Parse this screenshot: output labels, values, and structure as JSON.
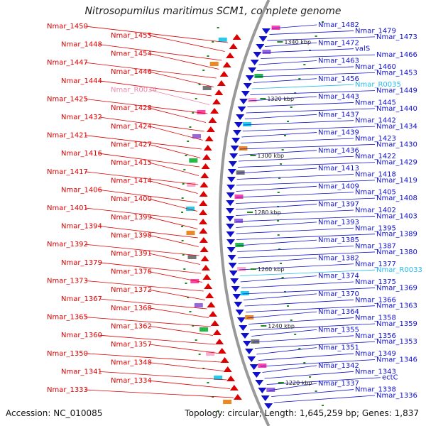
{
  "title": "Nitrosopumilus maritimus SCM1, complete genome",
  "footer": {
    "accession": "Accession: NC_010085",
    "info": "Topology: circular; Length: 1,645,259 bp; Genes: 1,837"
  },
  "colors": {
    "reverse": "#dd0000",
    "forward": "#1010cc",
    "rna": "#ee88aa",
    "trna": "#22bbee",
    "backbone": "#999999",
    "tick": "#228822"
  },
  "kbp_marks": [
    "1340 kbp",
    "1320 kbp",
    "1300 kbp",
    "1280 kbp",
    "1260 kbp",
    "1240 kbp",
    "1220 kbp"
  ],
  "left_labels": [
    {
      "text": "Nmar_1450",
      "kind": "reverse"
    },
    {
      "text": "Nmar_1455",
      "kind": "reverse"
    },
    {
      "text": "Nmar_1448",
      "kind": "reverse"
    },
    {
      "text": "Nmar_1454",
      "kind": "reverse"
    },
    {
      "text": "Nmar_1447",
      "kind": "reverse"
    },
    {
      "text": "Nmar_1446",
      "kind": "reverse"
    },
    {
      "text": "Nmar_1444",
      "kind": "reverse"
    },
    {
      "text": "Nmar_R0034",
      "kind": "rna"
    },
    {
      "text": "Nmar_1425",
      "kind": "reverse"
    },
    {
      "text": "Nmar_1428",
      "kind": "reverse"
    },
    {
      "text": "Nmar_1432",
      "kind": "reverse"
    },
    {
      "text": "Nmar_1424",
      "kind": "reverse"
    },
    {
      "text": "Nmar_1421",
      "kind": "reverse"
    },
    {
      "text": "Nmar_1427",
      "kind": "reverse"
    },
    {
      "text": "Nmar_1416",
      "kind": "reverse"
    },
    {
      "text": "Nmar_1415",
      "kind": "reverse"
    },
    {
      "text": "Nmar_1417",
      "kind": "reverse"
    },
    {
      "text": "Nmar_1414",
      "kind": "reverse"
    },
    {
      "text": "Nmar_1406",
      "kind": "reverse"
    },
    {
      "text": "Nmar_1400",
      "kind": "reverse"
    },
    {
      "text": "Nmar_1401",
      "kind": "reverse"
    },
    {
      "text": "Nmar_1399",
      "kind": "reverse"
    },
    {
      "text": "Nmar_1394",
      "kind": "reverse"
    },
    {
      "text": "Nmar_1398",
      "kind": "reverse"
    },
    {
      "text": "Nmar_1392",
      "kind": "reverse"
    },
    {
      "text": "Nmar_1391",
      "kind": "reverse"
    },
    {
      "text": "Nmar_1379",
      "kind": "reverse"
    },
    {
      "text": "Nmar_1376",
      "kind": "reverse"
    },
    {
      "text": "Nmar_1373",
      "kind": "reverse"
    },
    {
      "text": "Nmar_1372",
      "kind": "reverse"
    },
    {
      "text": "Nmar_1367",
      "kind": "reverse"
    },
    {
      "text": "Nmar_1368",
      "kind": "reverse"
    },
    {
      "text": "Nmar_1365",
      "kind": "reverse"
    },
    {
      "text": "Nmar_1362",
      "kind": "reverse"
    },
    {
      "text": "Nmar_1360",
      "kind": "reverse"
    },
    {
      "text": "Nmar_1357",
      "kind": "reverse"
    },
    {
      "text": "Nmar_1350",
      "kind": "reverse"
    },
    {
      "text": "Nmar_1348",
      "kind": "reverse"
    },
    {
      "text": "Nmar_1341",
      "kind": "reverse"
    },
    {
      "text": "Nmar_1334",
      "kind": "reverse"
    },
    {
      "text": "Nmar_1333",
      "kind": "reverse"
    }
  ],
  "right_labels": [
    {
      "text": "Nmar_1482",
      "kind": "forward"
    },
    {
      "text": "Nmar_1479",
      "kind": "forward"
    },
    {
      "text": "Nmar_1473",
      "kind": "forward"
    },
    {
      "text": "Nmar_1472",
      "kind": "forward"
    },
    {
      "text": "valS",
      "kind": "forward"
    },
    {
      "text": "Nmar_1466",
      "kind": "forward"
    },
    {
      "text": "Nmar_1463",
      "kind": "forward"
    },
    {
      "text": "Nmar_1460",
      "kind": "forward"
    },
    {
      "text": "Nmar_1453",
      "kind": "forward"
    },
    {
      "text": "Nmar_1456",
      "kind": "forward"
    },
    {
      "text": "Nmar_R0035",
      "kind": "trna"
    },
    {
      "text": "Nmar_1449",
      "kind": "forward"
    },
    {
      "text": "Nmar_1443",
      "kind": "forward"
    },
    {
      "text": "Nmar_1445",
      "kind": "forward"
    },
    {
      "text": "Nmar_1440",
      "kind": "forward"
    },
    {
      "text": "Nmar_1437",
      "kind": "forward"
    },
    {
      "text": "Nmar_1442",
      "kind": "forward"
    },
    {
      "text": "Nmar_1434",
      "kind": "forward"
    },
    {
      "text": "Nmar_1439",
      "kind": "forward"
    },
    {
      "text": "Nmar_1423",
      "kind": "forward"
    },
    {
      "text": "Nmar_1430",
      "kind": "forward"
    },
    {
      "text": "Nmar_1436",
      "kind": "forward"
    },
    {
      "text": "Nmar_1422",
      "kind": "forward"
    },
    {
      "text": "Nmar_1429",
      "kind": "forward"
    },
    {
      "text": "Nmar_1413",
      "kind": "forward"
    },
    {
      "text": "Nmar_1418",
      "kind": "forward"
    },
    {
      "text": "Nmar_1419",
      "kind": "forward"
    },
    {
      "text": "Nmar_1409",
      "kind": "forward"
    },
    {
      "text": "Nmar_1405",
      "kind": "forward"
    },
    {
      "text": "Nmar_1408",
      "kind": "forward"
    },
    {
      "text": "Nmar_1397",
      "kind": "forward"
    },
    {
      "text": "Nmar_1402",
      "kind": "forward"
    },
    {
      "text": "Nmar_1403",
      "kind": "forward"
    },
    {
      "text": "Nmar_1393",
      "kind": "forward"
    },
    {
      "text": "Nmar_1395",
      "kind": "forward"
    },
    {
      "text": "Nmar_1389",
      "kind": "forward"
    },
    {
      "text": "Nmar_1385",
      "kind": "forward"
    },
    {
      "text": "Nmar_1387",
      "kind": "forward"
    },
    {
      "text": "Nmar_1380",
      "kind": "forward"
    },
    {
      "text": "Nmar_1382",
      "kind": "forward"
    },
    {
      "text": "Nmar_1377",
      "kind": "forward"
    },
    {
      "text": "Nmar_R0033",
      "kind": "trna"
    },
    {
      "text": "Nmar_1374",
      "kind": "forward"
    },
    {
      "text": "Nmar_1375",
      "kind": "forward"
    },
    {
      "text": "Nmar_1369",
      "kind": "forward"
    },
    {
      "text": "Nmar_1370",
      "kind": "forward"
    },
    {
      "text": "Nmar_1366",
      "kind": "forward"
    },
    {
      "text": "Nmar_1363",
      "kind": "forward"
    },
    {
      "text": "Nmar_1364",
      "kind": "forward"
    },
    {
      "text": "Nmar_1358",
      "kind": "forward"
    },
    {
      "text": "Nmar_1359",
      "kind": "forward"
    },
    {
      "text": "Nmar_1355",
      "kind": "forward"
    },
    {
      "text": "Nmar_1356",
      "kind": "forward"
    },
    {
      "text": "Nmar_1353",
      "kind": "forward"
    },
    {
      "text": "Nmar_1351",
      "kind": "forward"
    },
    {
      "text": "Nmar_1349",
      "kind": "forward"
    },
    {
      "text": "Nmar_1346",
      "kind": "forward"
    },
    {
      "text": "Nmar_1342",
      "kind": "forward"
    },
    {
      "text": "Nmar_1343",
      "kind": "forward"
    },
    {
      "text": "ectC",
      "kind": "forward"
    },
    {
      "text": "Nmar_1337",
      "kind": "forward"
    },
    {
      "text": "Nmar_1338",
      "kind": "forward"
    },
    {
      "text": "Nmar_1336",
      "kind": "forward"
    }
  ]
}
